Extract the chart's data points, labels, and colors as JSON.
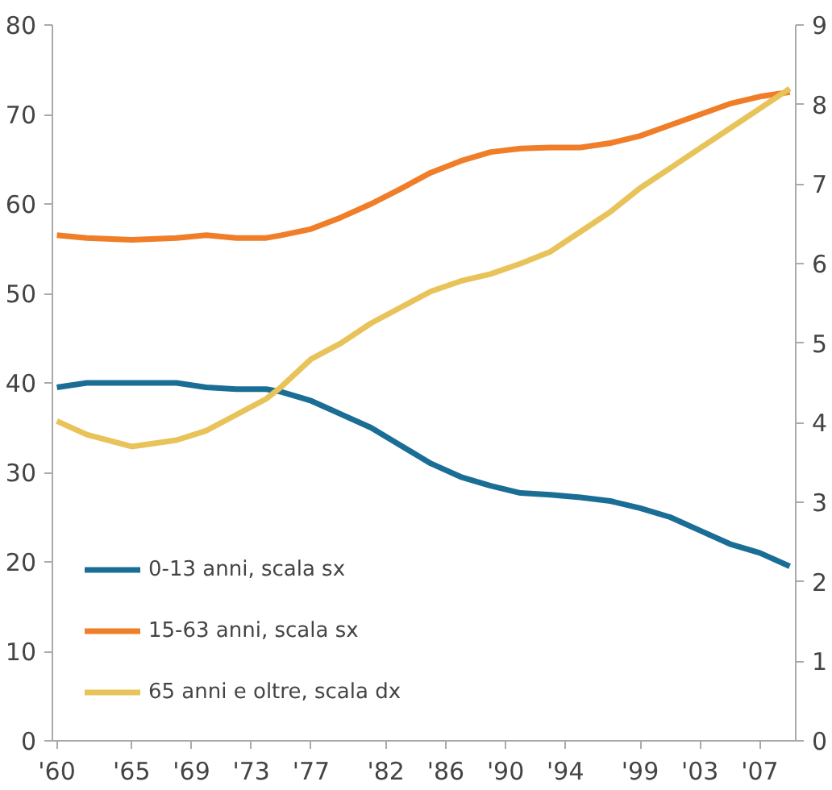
{
  "chart_data": {
    "type": "line",
    "x": [
      1960,
      1962,
      1965,
      1968,
      1970,
      1972,
      1974,
      1975,
      1977,
      1979,
      1981,
      1983,
      1985,
      1987,
      1989,
      1991,
      1993,
      1995,
      1997,
      1999,
      2001,
      2003,
      2005,
      2007,
      2009
    ],
    "xlim": [
      1959.7,
      2009.4
    ],
    "xticks": [
      {
        "value": 1960,
        "label": "'60"
      },
      {
        "value": 1965,
        "label": "'65"
      },
      {
        "value": 1969,
        "label": "'69"
      },
      {
        "value": 1973,
        "label": "'73"
      },
      {
        "value": 1977,
        "label": "'77"
      },
      {
        "value": 1982,
        "label": "'82"
      },
      {
        "value": 1986,
        "label": "'86"
      },
      {
        "value": 1990,
        "label": "'90"
      },
      {
        "value": 1994,
        "label": "'94"
      },
      {
        "value": 1999,
        "label": "'99"
      },
      {
        "value": 2003,
        "label": "'03"
      },
      {
        "value": 2007,
        "label": "'07"
      }
    ],
    "ylim": [
      0,
      80
    ],
    "yticks": [
      0,
      10,
      20,
      30,
      40,
      50,
      60,
      70,
      80
    ],
    "y2lim": [
      0,
      9
    ],
    "y2ticks": [
      0,
      1,
      2,
      3,
      4,
      5,
      6,
      7,
      8,
      9
    ],
    "grid": false,
    "legend": "bottom left",
    "series": [
      {
        "name": "0-13 anni, scala sx",
        "color": "#1a6e96",
        "values": [
          39.5,
          40,
          40,
          40,
          39.5,
          39.3,
          39.3,
          39,
          38,
          36.5,
          35,
          33,
          31,
          29.5,
          28.5,
          27.7,
          27.5,
          27.2,
          26.8,
          26,
          25,
          23.5,
          22,
          21,
          19.5
        ]
      },
      {
        "name": "15-63 anni, scala sx",
        "color": "#f07d28",
        "values": [
          56.5,
          56.2,
          56,
          56.2,
          56.5,
          56.2,
          56.2,
          56.5,
          57.2,
          58.5,
          60,
          61.7,
          63.5,
          64.8,
          65.8,
          66.2,
          66.3,
          66.3,
          66.8,
          67.6,
          68.8,
          70,
          71.2,
          72,
          72.5
        ]
      },
      {
        "name": "65 anni e oltre, scala dx",
        "color": "#e8c35a",
        "axis": "y2",
        "values": [
          4.02,
          3.85,
          3.7,
          3.78,
          3.9,
          4.1,
          4.3,
          4.45,
          4.8,
          5.0,
          5.25,
          5.45,
          5.65,
          5.78,
          5.87,
          6.0,
          6.15,
          6.4,
          6.65,
          6.95,
          7.2,
          7.45,
          7.7,
          7.95,
          8.2
        ]
      }
    ]
  }
}
